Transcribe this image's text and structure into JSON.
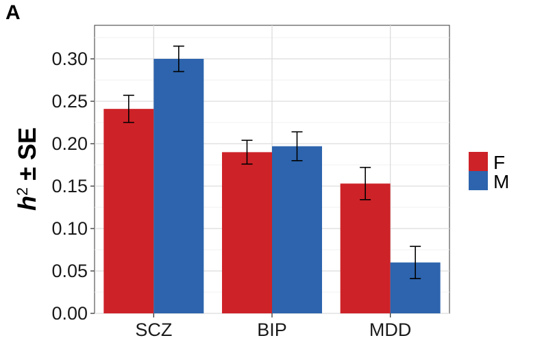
{
  "panel_label": "A",
  "chart_data": {
    "type": "bar",
    "categories": [
      "SCZ",
      "BIP",
      "MDD"
    ],
    "series": [
      {
        "name": "F",
        "color": "#cd2228",
        "values": [
          0.241,
          0.19,
          0.153
        ],
        "se": [
          0.016,
          0.014,
          0.019
        ]
      },
      {
        "name": "M",
        "color": "#2d64ad",
        "values": [
          0.3,
          0.197,
          0.06
        ],
        "se": [
          0.015,
          0.017,
          0.019
        ]
      }
    ],
    "ylabel_base": "h",
    "ylabel_sup": "2",
    "ylabel_rest": " ± SE",
    "xlabel": "",
    "ylim": [
      0,
      0.3
    ],
    "y_ticks": [
      "0.00",
      "0.05",
      "0.10",
      "0.15",
      "0.20",
      "0.25",
      "0.30"
    ],
    "grid": true,
    "legend_position": "right",
    "legend_labels": [
      "F",
      "M"
    ]
  }
}
